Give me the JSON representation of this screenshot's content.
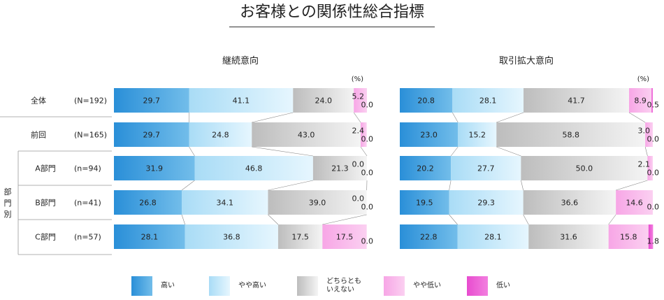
{
  "title": "お客様との関係性総合指標",
  "unit_label": "(%)",
  "group_label": "部門別",
  "rows": [
    {
      "label": "全体",
      "n": "(N=192)"
    },
    {
      "label": "前回",
      "n": "(N=165)"
    },
    {
      "label": "A部門",
      "n": "(n=94)"
    },
    {
      "label": "B部門",
      "n": "(n=41)"
    },
    {
      "label": "C部門",
      "n": "(n=57)"
    }
  ],
  "legend": [
    {
      "label": "高い",
      "color": "#2a8fd8"
    },
    {
      "label": "やや高い",
      "color": "#a9dcf6"
    },
    {
      "label": "どちらとも\nいえない",
      "color": "#bdbdbd"
    },
    {
      "label": "やや低い",
      "color": "#f7a6e6"
    },
    {
      "label": "低い",
      "color": "#e84ccf"
    }
  ],
  "chart_data": [
    {
      "type": "bar",
      "title": "継続意向",
      "categories": [
        "全体",
        "前回",
        "A部門",
        "B部門",
        "C部門"
      ],
      "series": [
        {
          "name": "高い",
          "values": [
            29.7,
            29.7,
            31.9,
            26.8,
            28.1
          ]
        },
        {
          "name": "やや高い",
          "values": [
            41.1,
            24.8,
            46.8,
            34.1,
            36.8
          ]
        },
        {
          "name": "どちらともいえない",
          "values": [
            24.0,
            43.0,
            21.3,
            39.0,
            17.5
          ]
        },
        {
          "name": "やや低い",
          "values": [
            5.2,
            2.4,
            0.0,
            0.0,
            17.5
          ]
        },
        {
          "name": "低い",
          "values": [
            0.0,
            0.0,
            0.0,
            0.0,
            0.0
          ]
        }
      ],
      "stacked": true,
      "orientation": "horizontal",
      "xlim": [
        0,
        100
      ]
    },
    {
      "type": "bar",
      "title": "取引拡大意向",
      "categories": [
        "全体",
        "前回",
        "A部門",
        "B部門",
        "C部門"
      ],
      "series": [
        {
          "name": "高い",
          "values": [
            20.8,
            23.0,
            20.2,
            19.5,
            22.8
          ]
        },
        {
          "name": "やや高い",
          "values": [
            28.1,
            15.2,
            27.7,
            29.3,
            28.1
          ]
        },
        {
          "name": "どちらともいえない",
          "values": [
            41.7,
            58.8,
            50.0,
            36.6,
            31.6
          ]
        },
        {
          "name": "やや低い",
          "values": [
            8.9,
            3.0,
            2.1,
            14.6,
            15.8
          ]
        },
        {
          "name": "低い",
          "values": [
            0.5,
            0.0,
            0.0,
            0.0,
            1.8
          ]
        }
      ],
      "stacked": true,
      "orientation": "horizontal",
      "xlim": [
        0,
        100
      ]
    }
  ]
}
